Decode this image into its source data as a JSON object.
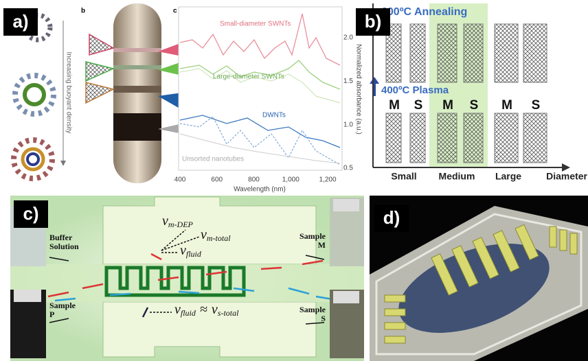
{
  "panels": {
    "a": {
      "label": "a)",
      "sub_labels": [
        "b",
        "c"
      ],
      "arrow_label": "Increasing buoyant density",
      "curves": [
        "Small-diameter SWNTs",
        "Large-diameter SWNTs",
        "DWNTs",
        "Unsorted nanotubes"
      ],
      "x_ticks": [
        "400",
        "600",
        "800",
        "1,000",
        "1,200"
      ],
      "x_label": "Wavelength (nm)",
      "y_ticks": [
        "2.0",
        "1.5",
        "1.0",
        "0.5"
      ],
      "y_label": "Normalized absorbance (a.u.)"
    },
    "b": {
      "label": "b)",
      "annealing": "600ºC Annealing",
      "plasma": "400ºC Plasma",
      "types": [
        "M",
        "S",
        "M",
        "S",
        "M",
        "S"
      ],
      "diameters": [
        "Small",
        "Medium",
        "Large"
      ],
      "axis_label": "Diameter"
    },
    "c": {
      "label": "c)",
      "buffer": [
        "Buffer",
        "Solution"
      ],
      "sample_p": [
        "Sample",
        "P"
      ],
      "sample_m": [
        "Sample",
        "M"
      ],
      "sample_s": [
        "Sample",
        "S"
      ],
      "v": "v",
      "sub_m_dep": "m-DEP",
      "sub_m_total": "m-total",
      "sub_fluid": "fluid",
      "approx": "≈",
      "sub_s_total": "s-total"
    },
    "d": {
      "label": "d)"
    }
  }
}
